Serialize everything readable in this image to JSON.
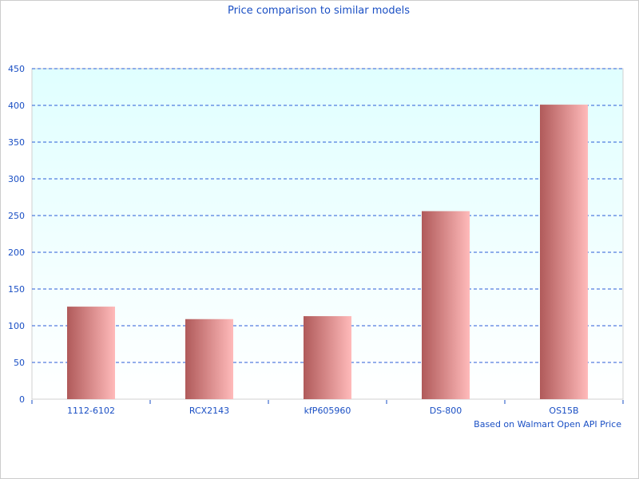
{
  "chart_data": {
    "type": "bar",
    "title": "Price comparison to similar models",
    "footnote": "Based on Walmart Open API Price",
    "categories": [
      "1112-6102",
      "RCX2143",
      "kfP605960",
      "DS-800",
      "OS15B"
    ],
    "values": [
      126,
      109,
      113,
      256,
      401
    ],
    "ylim": [
      0,
      450
    ],
    "yticks": [
      0,
      50,
      100,
      150,
      200,
      250,
      300,
      350,
      400,
      450
    ],
    "grid": true,
    "colors": {
      "bar_dark": "#b05a5a",
      "bar_light": "#ffbaba",
      "text": "#1a4fc4",
      "grid": "#2a5bd7",
      "plot_top": "#e0ffff",
      "plot_bottom": "#ffffff"
    }
  }
}
